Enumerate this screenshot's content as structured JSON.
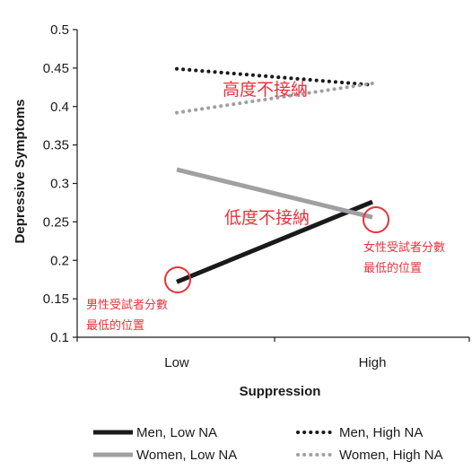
{
  "chart_data": {
    "type": "line",
    "xlabel": "Suppression",
    "ylabel": "Depressive Symptoms",
    "categories": [
      "Low",
      "High"
    ],
    "ylim": [
      0.1,
      0.5
    ],
    "yticks": [
      "0.1",
      "0.15",
      "0.2",
      "0.25",
      "0.3",
      "0.35",
      "0.4",
      "0.45",
      "0.5"
    ],
    "grid": false,
    "legend_position": "bottom",
    "series": [
      {
        "name": "Men, Low NA",
        "values": [
          0.172,
          0.276
        ],
        "color": "#1a1a1a",
        "style": "solid"
      },
      {
        "name": "Women, Low NA",
        "values": [
          0.318,
          0.256
        ],
        "color": "#a0a0a2",
        "style": "solid"
      },
      {
        "name": "Men, High NA",
        "values": [
          0.449,
          0.428
        ],
        "color": "#1a1a1a",
        "style": "dotted"
      },
      {
        "name": "Women, High NA",
        "values": [
          0.392,
          0.43
        ],
        "color": "#a0a0a2",
        "style": "dotted"
      }
    ],
    "annotations": {
      "high_no_accept": "高度不接納",
      "low_no_accept": "低度不接納",
      "men_lowest": [
        "男性受試者分數",
        "最低的位置"
      ],
      "women_lowest": [
        "女性受試者分數",
        "最低的位置"
      ]
    },
    "highlight_color": "#e8323a"
  }
}
